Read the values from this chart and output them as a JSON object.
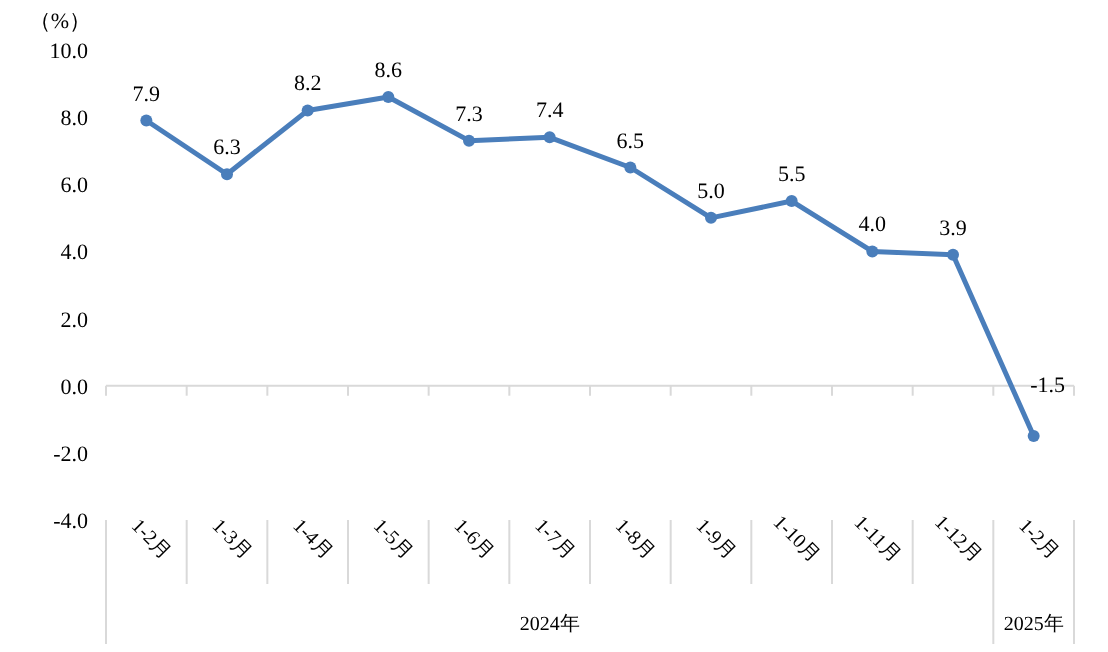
{
  "chart_data": {
    "type": "line",
    "ylabel": "（%）",
    "categories": [
      "1-2月",
      "1-3月",
      "1-4月",
      "1-5月",
      "1-6月",
      "1-7月",
      "1-8月",
      "1-9月",
      "1-10月",
      "1-11月",
      "1-12月",
      "1-2月"
    ],
    "series": [
      {
        "color": "#4a7ebb",
        "values": [
          7.9,
          6.3,
          8.2,
          8.6,
          7.3,
          7.4,
          6.5,
          5.0,
          5.5,
          4.0,
          3.9,
          -1.5
        ],
        "value_labels": [
          "7.9",
          "6.3",
          "8.2",
          "8.6",
          "7.3",
          "7.4",
          "6.5",
          "5.0",
          "5.5",
          "4.0",
          "3.9",
          "-1.5"
        ]
      }
    ],
    "ylim": [
      -4,
      10
    ],
    "yticks": [
      {
        "value": -4,
        "label": "-4.0"
      },
      {
        "value": -2,
        "label": "-2.0"
      },
      {
        "value": 0,
        "label": "0.0"
      },
      {
        "value": 2,
        "label": "2.0"
      },
      {
        "value": 4,
        "label": "4.0"
      },
      {
        "value": 6,
        "label": "6.0"
      },
      {
        "value": 8,
        "label": "8.0"
      },
      {
        "value": 10,
        "label": "10.0"
      }
    ],
    "marker": "circle",
    "line_style": "solid",
    "annotations": [
      "2024年",
      "2025年"
    ]
  }
}
